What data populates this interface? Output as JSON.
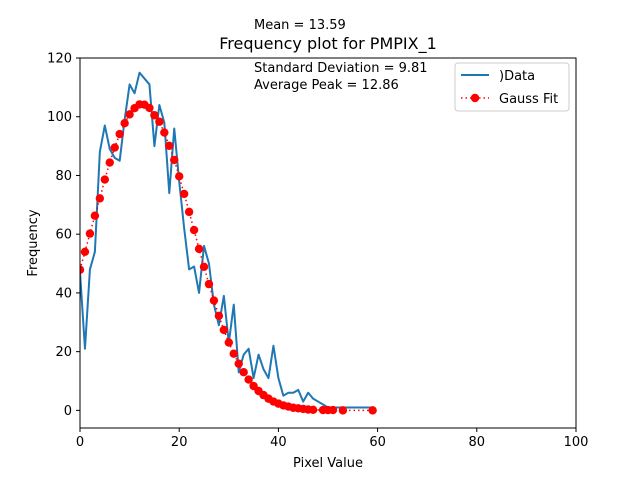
{
  "chart_data": {
    "type": "line",
    "title": "Frequency plot for PMPIX_1",
    "xlabel": "Pixel Value",
    "ylabel": "Frequency",
    "xlim": [
      0,
      100
    ],
    "ylim": [
      -6,
      120
    ],
    "xticks": [
      0,
      20,
      40,
      60,
      80,
      100
    ],
    "yticks": [
      0,
      20,
      40,
      60,
      80,
      100,
      120
    ],
    "grid": false,
    "legend_position": "top-right",
    "annotations": [
      "Mean = 13.59",
      "Standard Deviation = 9.81",
      "Average Peak = 12.86"
    ],
    "series": [
      {
        "name": ")Data",
        "style": "line",
        "color": "#1f77b4",
        "x": [
          0,
          1,
          2,
          3,
          4,
          5,
          6,
          7,
          8,
          9,
          10,
          11,
          12,
          13,
          14,
          15,
          16,
          17,
          18,
          19,
          20,
          21,
          22,
          23,
          24,
          25,
          26,
          27,
          28,
          29,
          30,
          31,
          32,
          33,
          34,
          35,
          36,
          37,
          38,
          39,
          40,
          41,
          42,
          43,
          44,
          45,
          46,
          47,
          48,
          49,
          50,
          51,
          52,
          53,
          54,
          55,
          56,
          57,
          58,
          59
        ],
        "y": [
          47,
          21,
          48,
          54,
          88,
          97,
          89,
          86,
          85,
          99,
          111,
          108,
          115,
          113,
          111,
          90,
          104,
          98,
          74,
          96,
          78,
          62,
          48,
          49,
          40,
          56,
          50,
          36,
          29,
          39,
          23,
          36,
          13,
          19,
          21,
          11,
          19,
          14,
          11,
          22,
          11,
          5,
          6,
          6,
          7,
          3,
          6,
          4,
          3,
          2,
          1,
          1,
          1,
          1,
          1,
          1,
          1,
          1,
          1,
          1
        ]
      },
      {
        "name": "Gauss Fit",
        "style": "dotted-markers",
        "color": "#ff0000",
        "x": [
          0,
          1,
          2,
          3,
          4,
          5,
          6,
          7,
          8,
          9,
          10,
          11,
          12,
          13,
          14,
          15,
          16,
          17,
          18,
          19,
          20,
          21,
          22,
          23,
          24,
          25,
          26,
          27,
          28,
          29,
          30,
          31,
          32,
          33,
          34,
          35,
          36,
          37,
          38,
          39,
          40,
          41,
          42,
          43,
          44,
          45,
          46,
          47,
          49,
          50,
          51,
          53,
          59
        ],
        "y": [
          47.9,
          54,
          60.2,
          66.3,
          72.2,
          78.6,
          84.4,
          89.5,
          94.1,
          97.8,
          100.8,
          102.9,
          104.2,
          104.1,
          103,
          100.5,
          98.3,
          94.6,
          90.1,
          85.3,
          79.7,
          73.7,
          67.6,
          61.4,
          55,
          48.9,
          43,
          37.4,
          32.2,
          27.4,
          23.1,
          19.3,
          15.9,
          13,
          10.5,
          8.3,
          6.6,
          5.2,
          4,
          3,
          2.3,
          1.7,
          1.3,
          0.9,
          0.7,
          0.5,
          0.3,
          0.2,
          0.1,
          0.1,
          0.1,
          0,
          0
        ]
      }
    ]
  }
}
